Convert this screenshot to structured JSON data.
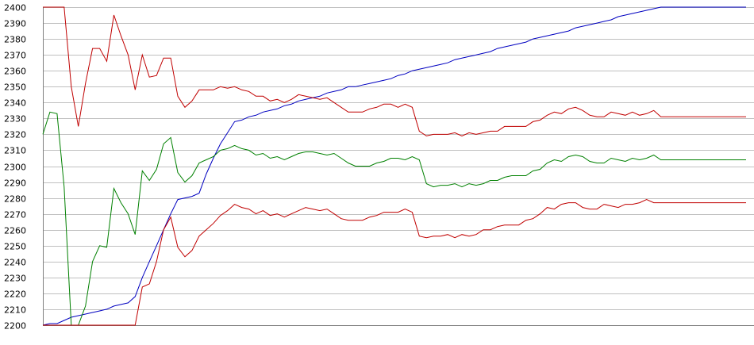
{
  "chart_data": {
    "type": "line",
    "title": "",
    "xlabel": "",
    "ylabel": "",
    "ylim": [
      2200,
      2400
    ],
    "yticks": [
      "2200",
      "2210",
      "2220",
      "2230",
      "2240",
      "2250",
      "2260",
      "2270",
      "2280",
      "2290",
      "2300",
      "2310",
      "2320",
      "2330",
      "2340",
      "2350",
      "2360",
      "2370",
      "2380",
      "2390",
      "2400"
    ],
    "grid": true,
    "x": [
      0,
      1,
      2,
      3,
      4,
      5,
      6,
      7,
      8,
      9,
      10,
      11,
      12,
      13,
      14,
      15,
      16,
      17,
      18,
      19,
      20,
      21,
      22,
      23,
      24,
      25,
      26,
      27,
      28,
      29,
      30,
      31,
      32,
      33,
      34,
      35,
      36,
      37,
      38,
      39,
      40,
      41,
      42,
      43,
      44,
      45,
      46,
      47,
      48,
      49,
      50,
      51,
      52,
      53,
      54,
      55,
      56,
      57,
      58,
      59,
      60,
      61,
      62,
      63,
      64,
      65,
      66,
      67,
      68,
      69,
      70,
      71,
      72,
      73,
      74,
      75,
      76,
      77,
      78,
      79,
      80,
      81,
      82,
      83,
      84,
      85,
      86,
      87,
      88,
      89,
      90,
      91,
      92,
      93,
      94,
      95,
      96,
      97,
      98,
      99
    ],
    "series": [
      {
        "color": "#0000c0",
        "values": [
          2200,
          2201,
          2201,
          2203,
          2205,
          2206,
          2207,
          2208,
          2209,
          2210,
          2212,
          2213,
          2214,
          2218,
          2230,
          2240,
          2250,
          2260,
          2270,
          2279,
          2280,
          2281,
          2283,
          2295,
          2305,
          2314,
          2321,
          2328,
          2329,
          2331,
          2332,
          2334,
          2335,
          2336,
          2338,
          2339,
          2341,
          2342,
          2343,
          2344,
          2346,
          2347,
          2348,
          2350,
          2350,
          2351,
          2352,
          2353,
          2354,
          2355,
          2357,
          2358,
          2360,
          2361,
          2362,
          2363,
          2364,
          2365,
          2367,
          2368,
          2369,
          2370,
          2371,
          2372,
          2374,
          2375,
          2376,
          2377,
          2378,
          2380,
          2381,
          2382,
          2383,
          2384,
          2385,
          2387,
          2388,
          2389,
          2390,
          2391,
          2392,
          2394,
          2395,
          2396,
          2397,
          2398,
          2399,
          2400,
          2400,
          2400,
          2400,
          2400,
          2400,
          2400,
          2400,
          2400,
          2400,
          2400,
          2400,
          2400
        ]
      },
      {
        "color": "#c00000",
        "values": [
          2400,
          2400,
          2400,
          2400,
          2350,
          2325,
          2352,
          2374,
          2374,
          2366,
          2395,
          2382,
          2370,
          2348,
          2370,
          2356,
          2357,
          2368,
          2368,
          2344,
          2337,
          2341,
          2348,
          2348,
          2348,
          2350,
          2349,
          2350,
          2348,
          2347,
          2344,
          2344,
          2341,
          2342,
          2340,
          2342,
          2345,
          2344,
          2343,
          2342,
          2343,
          2340,
          2337,
          2334,
          2334,
          2334,
          2336,
          2337,
          2339,
          2339,
          2337,
          2339,
          2337,
          2322,
          2319,
          2320,
          2320,
          2320,
          2321,
          2319,
          2321,
          2320,
          2321,
          2322,
          2322,
          2325,
          2325,
          2325,
          2325,
          2328,
          2329,
          2332,
          2334,
          2333,
          2336,
          2337,
          2335,
          2332,
          2331,
          2331,
          2334,
          2333,
          2332,
          2334,
          2332,
          2333,
          2335,
          2331,
          2331,
          2331,
          2331,
          2331,
          2331,
          2331,
          2331,
          2331,
          2331,
          2331,
          2331,
          2331
        ]
      },
      {
        "color": "#008000",
        "values": [
          2320,
          2334,
          2333,
          2287,
          2200,
          2200,
          2212,
          2240,
          2250,
          2249,
          2286,
          2277,
          2270,
          2257,
          2297,
          2291,
          2298,
          2314,
          2318,
          2296,
          2290,
          2294,
          2302,
          2304,
          2306,
          2310,
          2311,
          2313,
          2311,
          2310,
          2307,
          2308,
          2305,
          2306,
          2304,
          2306,
          2308,
          2309,
          2309,
          2308,
          2307,
          2308,
          2305,
          2302,
          2300,
          2300,
          2300,
          2302,
          2303,
          2305,
          2305,
          2304,
          2306,
          2304,
          2289,
          2287,
          2288,
          2288,
          2289,
          2287,
          2289,
          2288,
          2289,
          2291,
          2291,
          2293,
          2294,
          2294,
          2294,
          2297,
          2298,
          2302,
          2304,
          2303,
          2306,
          2307,
          2306,
          2303,
          2302,
          2302,
          2305,
          2304,
          2303,
          2305,
          2304,
          2305,
          2307,
          2304,
          2304,
          2304,
          2304,
          2304,
          2304,
          2304,
          2304,
          2304,
          2304,
          2304,
          2304,
          2304
        ]
      },
      {
        "color": "#c00000",
        "values": [
          2200,
          2200,
          2200,
          2200,
          2200,
          2200,
          2200,
          2200,
          2200,
          2200,
          2200,
          2200,
          2200,
          2200,
          2224,
          2226,
          2240,
          2260,
          2268,
          2249,
          2243,
          2247,
          2256,
          2260,
          2264,
          2269,
          2272,
          2276,
          2274,
          2273,
          2270,
          2272,
          2269,
          2270,
          2268,
          2270,
          2272,
          2274,
          2273,
          2272,
          2273,
          2270,
          2267,
          2266,
          2266,
          2266,
          2268,
          2269,
          2271,
          2271,
          2271,
          2273,
          2271,
          2256,
          2255,
          2256,
          2256,
          2257,
          2255,
          2257,
          2256,
          2257,
          2260,
          2260,
          2262,
          2263,
          2263,
          2263,
          2266,
          2267,
          2270,
          2274,
          2273,
          2276,
          2277,
          2277,
          2274,
          2273,
          2273,
          2276,
          2275,
          2274,
          2276,
          2276,
          2277,
          2279,
          2277,
          2277,
          2277,
          2277,
          2277,
          2277,
          2277,
          2277,
          2277,
          2277,
          2277,
          2277,
          2277,
          2277
        ]
      }
    ]
  }
}
